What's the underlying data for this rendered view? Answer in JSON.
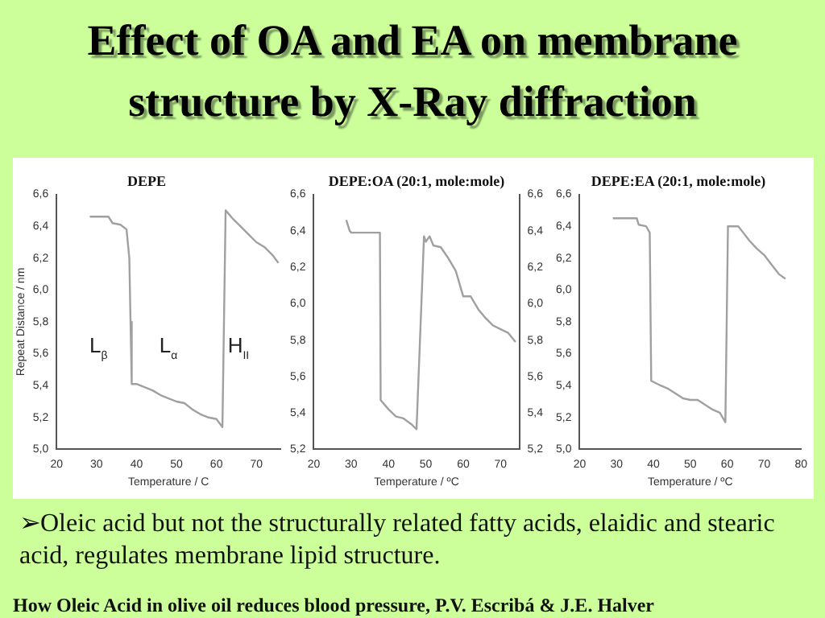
{
  "chart_data": [
    {
      "type": "line",
      "title": "Effect of OA and EA on membrane structure by X-Ray diffraction",
      "subtitle": "DEPE",
      "xlabel": "Temperature / C",
      "ylabel": "Repeat Distance / nm",
      "x": [
        28.3,
        33,
        34,
        36,
        37.5,
        38.2,
        38.5,
        38.8,
        40,
        42,
        44,
        46,
        48,
        50,
        52,
        54,
        56,
        58,
        60,
        61.5,
        62.3,
        64,
        66,
        68,
        70,
        72,
        74,
        75.5
      ],
      "series": [
        {
          "color": "#a0a0a0",
          "values": [
            6.46,
            6.46,
            6.42,
            6.41,
            6.38,
            6.2,
            5.8,
            5.41,
            5.41,
            5.39,
            5.37,
            5.34,
            5.32,
            5.3,
            5.29,
            5.25,
            5.22,
            5.2,
            5.19,
            5.14,
            6.5,
            6.45,
            6.4,
            6.35,
            6.3,
            6.27,
            6.22,
            6.17
          ]
        }
      ],
      "xlim": [
        20,
        76
      ],
      "xticks": [
        20,
        30,
        40,
        50,
        60,
        70
      ],
      "ylim": [
        5.0,
        6.6
      ],
      "yticks": [
        {
          "value": 5.0,
          "label": "5,0"
        },
        {
          "value": 5.2,
          "label": "5,2"
        },
        {
          "value": 5.4,
          "label": "5,4"
        },
        {
          "value": 5.6,
          "label": "5,6"
        },
        {
          "value": 5.8,
          "label": "5,8"
        },
        {
          "value": 6.0,
          "label": "6,0"
        },
        {
          "value": 6.2,
          "label": "6,2"
        },
        {
          "value": 6.4,
          "label": "6,4"
        },
        {
          "value": 6.6,
          "label": "6,6"
        }
      ],
      "annotations": [
        "L$_{β}$",
        "L$_{α}$",
        "H$_{II}$"
      ]
    },
    {
      "type": "line",
      "title": "DEPE:OA (20:1, mole:mole)",
      "xlabel": "Temperature / ºC",
      "x": [
        28.7,
        29.6,
        30,
        37.7,
        37.9,
        40,
        42,
        44,
        46,
        47.5,
        49.5,
        50,
        51,
        52,
        54,
        56,
        58,
        60,
        62,
        64,
        66,
        68,
        70,
        72,
        74
      ],
      "series": [
        {
          "color": "#a0a0a0",
          "values": [
            6.46,
            6.4,
            6.39,
            6.39,
            5.47,
            5.42,
            5.38,
            5.37,
            5.34,
            5.31,
            6.37,
            6.34,
            6.37,
            6.32,
            6.31,
            6.25,
            6.18,
            6.04,
            6.04,
            5.97,
            5.92,
            5.88,
            5.86,
            5.84,
            5.79
          ]
        }
      ],
      "xlim": [
        20,
        75
      ],
      "xticks": [
        20,
        30,
        40,
        50,
        60,
        70
      ],
      "ylim": [
        5.2,
        6.6
      ],
      "yticks": [
        {
          "value": 5.2,
          "label": "5,2"
        },
        {
          "value": 5.4,
          "label": "5,4"
        },
        {
          "value": 5.6,
          "label": "5,6"
        },
        {
          "value": 5.8,
          "label": "5,8"
        },
        {
          "value": 6.0,
          "label": "6,0"
        },
        {
          "value": 6.2,
          "label": "6,2"
        },
        {
          "value": 6.4,
          "label": "6,4"
        },
        {
          "value": 6.6,
          "label": "6,6"
        }
      ],
      "y2lim": [
        5.2,
        6.6
      ],
      "y2ticks": [
        {
          "value": 5.2,
          "label": "5,2"
        },
        {
          "value": 5.4,
          "label": "5,4"
        },
        {
          "value": 5.6,
          "label": "5,6"
        },
        {
          "value": 5.8,
          "label": "5,8"
        },
        {
          "value": 6.0,
          "label": "6,0"
        },
        {
          "value": 6.2,
          "label": "6,2"
        },
        {
          "value": 6.4,
          "label": "6,4"
        },
        {
          "value": 6.6,
          "label": "6,6"
        }
      ]
    },
    {
      "type": "line",
      "title": "DEPE:EA (20:1, mole:mole)",
      "xlabel": "Temperature / ºC",
      "x": [
        29,
        35.5,
        36,
        38,
        39,
        39.4,
        42,
        44,
        46,
        48,
        50,
        52,
        54,
        56,
        58,
        59.5,
        60.2,
        63,
        64,
        66,
        68,
        70,
        72,
        74,
        75.8
      ],
      "series": [
        {
          "color": "#a0a0a0",
          "values": [
            6.45,
            6.45,
            6.41,
            6.4,
            6.36,
            5.43,
            5.4,
            5.38,
            5.35,
            5.32,
            5.31,
            5.31,
            5.28,
            5.25,
            5.23,
            5.17,
            6.4,
            6.4,
            6.37,
            6.31,
            6.26,
            6.22,
            6.16,
            6.1,
            6.07
          ]
        }
      ],
      "xlim": [
        20,
        80
      ],
      "xticks": [
        20,
        30,
        40,
        50,
        60,
        70,
        80
      ],
      "ylim": [
        5.0,
        6.6
      ],
      "yticks": [
        {
          "value": 5.0,
          "label": "5,0"
        },
        {
          "value": 5.2,
          "label": "5,2"
        },
        {
          "value": 5.4,
          "label": "5,4"
        },
        {
          "value": 5.6,
          "label": "5,6"
        },
        {
          "value": 5.8,
          "label": "5,8"
        },
        {
          "value": 6.0,
          "label": "6,0"
        },
        {
          "value": 6.2,
          "label": "6,2"
        },
        {
          "value": 6.4,
          "label": "6,4"
        },
        {
          "value": 6.6,
          "label": "6,6"
        }
      ],
      "annotations": [
        "➢Oleic acid but not the structurally related fatty acids, elaidic and stearic acid, regulates membrane lipid structure.",
        "How Oleic Acid in olive oil reduces blood pressure, P.V. Escribá & J.E. Halver"
      ]
    }
  ]
}
